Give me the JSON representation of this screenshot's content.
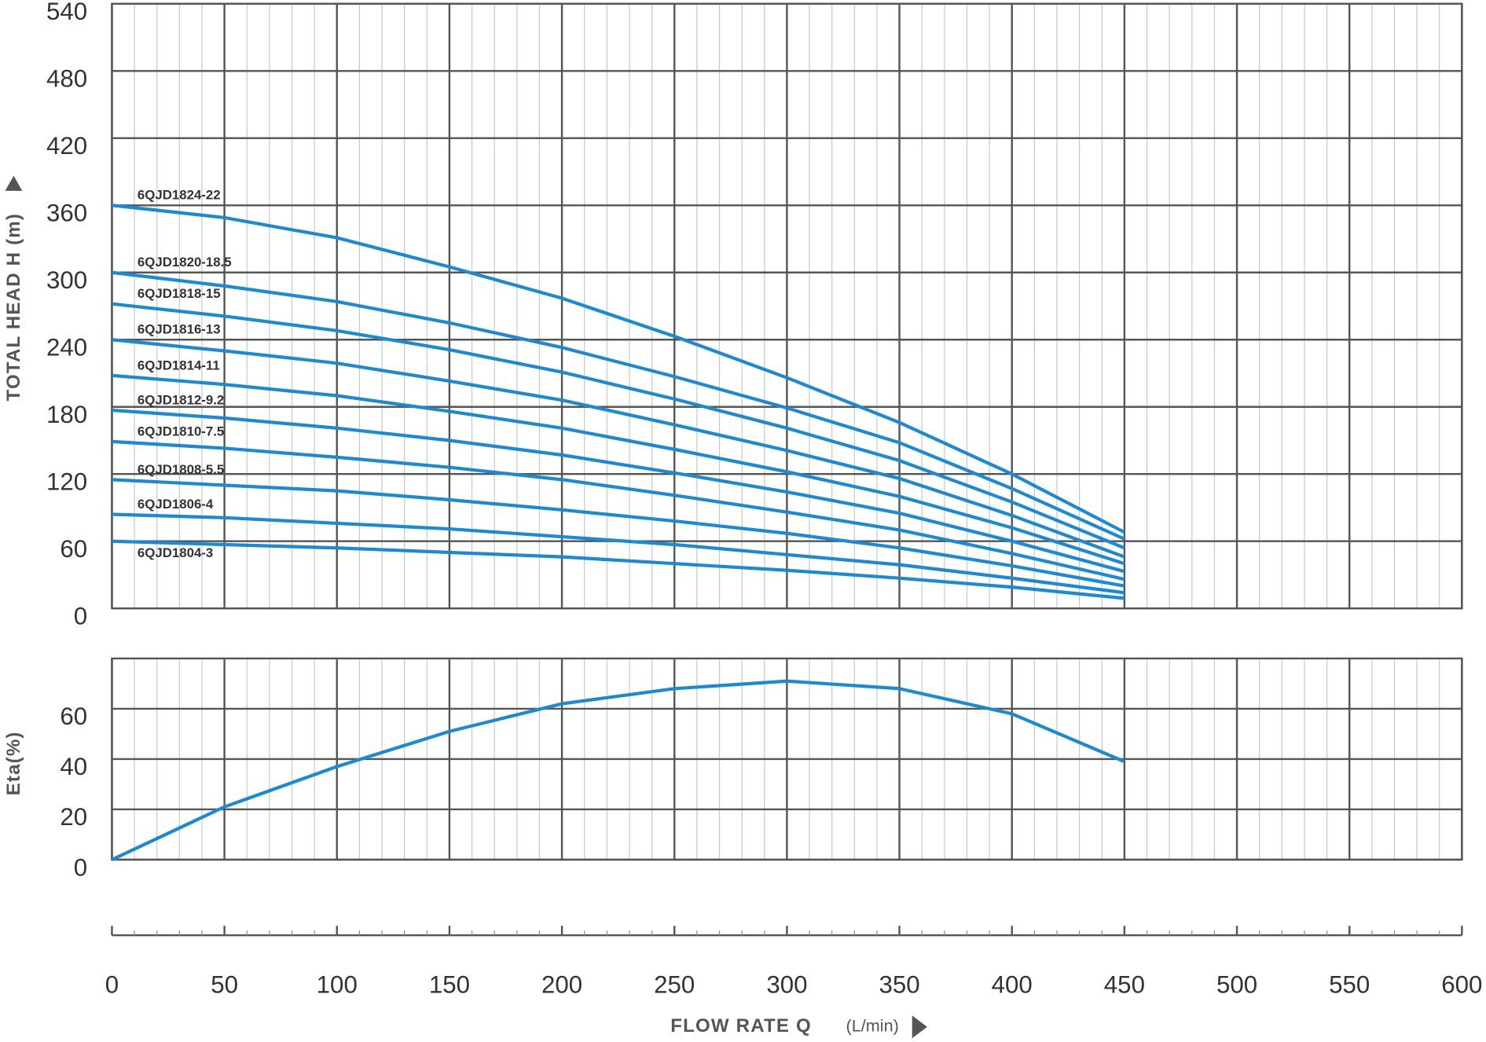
{
  "chart_data": [
    {
      "type": "line",
      "ylabel": "TOTAL HEAD H (m)",
      "ylim": [
        0,
        540
      ],
      "yticks": [
        0,
        60,
        120,
        180,
        240,
        300,
        360,
        420,
        480,
        540
      ],
      "x": [
        0,
        50,
        100,
        150,
        200,
        250,
        300,
        350,
        400,
        450
      ],
      "series": [
        {
          "name": "6QJD1824-22",
          "color": "#1a8ad4",
          "values": [
            360,
            349,
            331,
            305,
            277,
            243,
            206,
            166,
            120,
            68
          ]
        },
        {
          "name": "6QJD1820-18.5",
          "color": "#1a8ad4",
          "values": [
            300,
            288,
            274,
            255,
            233,
            207,
            179,
            148,
            107,
            62
          ]
        },
        {
          "name": "6QJD1818-15",
          "color": "#1a8ad4",
          "values": [
            272,
            261,
            248,
            231,
            211,
            187,
            161,
            132,
            95,
            54
          ]
        },
        {
          "name": "6QJD1816-13",
          "color": "#1a8ad4",
          "values": [
            240,
            230,
            219,
            203,
            186,
            164,
            141,
            116,
            83,
            46
          ]
        },
        {
          "name": "6QJD1814-11",
          "color": "#1a8ad4",
          "values": [
            208,
            200,
            190,
            176,
            161,
            142,
            122,
            100,
            72,
            40
          ]
        },
        {
          "name": "6QJD1812-9.2",
          "color": "#1a8ad4",
          "values": [
            177,
            170,
            161,
            150,
            137,
            121,
            104,
            85,
            60,
            33
          ]
        },
        {
          "name": "6QJD1810-7.5",
          "color": "#1a8ad4",
          "values": [
            149,
            143,
            135,
            126,
            115,
            101,
            86,
            70,
            49,
            26
          ]
        },
        {
          "name": "6QJD1808-5.5",
          "color": "#1a8ad4",
          "values": [
            115,
            110,
            105,
            97,
            88,
            78,
            67,
            54,
            38,
            20
          ]
        },
        {
          "name": "6QJD1806-4",
          "color": "#1a8ad4",
          "values": [
            84,
            81,
            76,
            71,
            64,
            57,
            48,
            39,
            27,
            14
          ]
        },
        {
          "name": "6QJD1804-3",
          "color": "#1a8ad4",
          "values": [
            60,
            57,
            54,
            50,
            46,
            40,
            34,
            27,
            19,
            9
          ]
        }
      ]
    },
    {
      "type": "line",
      "ylabel": "Eta(%)",
      "xlabel": "FLOW RATE Q",
      "x_unit": "(L/min)",
      "xlim": [
        0,
        600
      ],
      "xticks": [
        0,
        50,
        100,
        150,
        200,
        250,
        300,
        350,
        400,
        450,
        500,
        550,
        600
      ],
      "ylim": [
        0,
        80
      ],
      "yticks": [
        0,
        20,
        40,
        60
      ],
      "x": [
        0,
        50,
        100,
        150,
        200,
        250,
        300,
        350,
        400,
        450
      ],
      "series": [
        {
          "color": "#1a8ad4",
          "values": [
            0,
            21,
            37,
            51,
            62,
            68,
            71,
            68,
            58,
            39
          ]
        }
      ]
    }
  ]
}
